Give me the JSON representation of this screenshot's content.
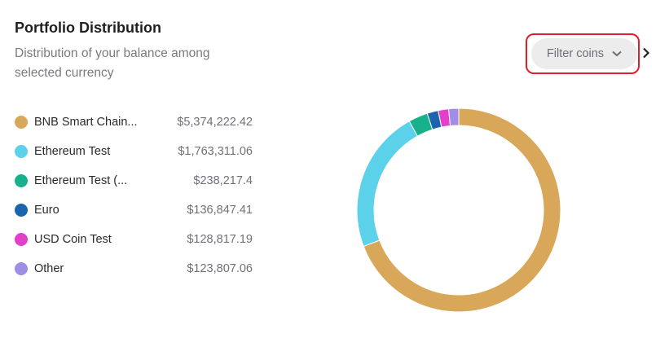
{
  "header": {
    "title": "Portfolio Distribution",
    "subtitle": "Distribution of your balance among selected currency"
  },
  "filter": {
    "label": "Filter coins",
    "icon": "chevron-down-icon",
    "next_icon": "chevron-right-icon",
    "highlight_color": "#e01e2a"
  },
  "legend": [
    {
      "label": "BNB Smart Chain...",
      "value": "$5,374,222.42",
      "color": "#d9a75a"
    },
    {
      "label": "Ethereum Test",
      "value": "$1,763,311.06",
      "color": "#5cd1ea"
    },
    {
      "label": "Ethereum Test (...",
      "value": "$238,217.4",
      "color": "#17b28b"
    },
    {
      "label": "Euro",
      "value": "$136,847.41",
      "color": "#1a65ad"
    },
    {
      "label": "USD Coin Test",
      "value": "$128,817.19",
      "color": "#e23fcb"
    },
    {
      "label": "Other",
      "value": "$123,807.06",
      "color": "#a08ee6"
    }
  ],
  "chart_data": {
    "type": "pie",
    "style": "donut",
    "categories": [
      "BNB Smart Chain...",
      "Ethereum Test",
      "Ethereum Test (...",
      "Euro",
      "USD Coin Test",
      "Other"
    ],
    "values": [
      5374222.42,
      1763311.06,
      238217.4,
      136847.41,
      128817.19,
      123807.06
    ],
    "colors": [
      "#d9a75a",
      "#5cd1ea",
      "#17b28b",
      "#1a65ad",
      "#e23fcb",
      "#a08ee6"
    ]
  }
}
